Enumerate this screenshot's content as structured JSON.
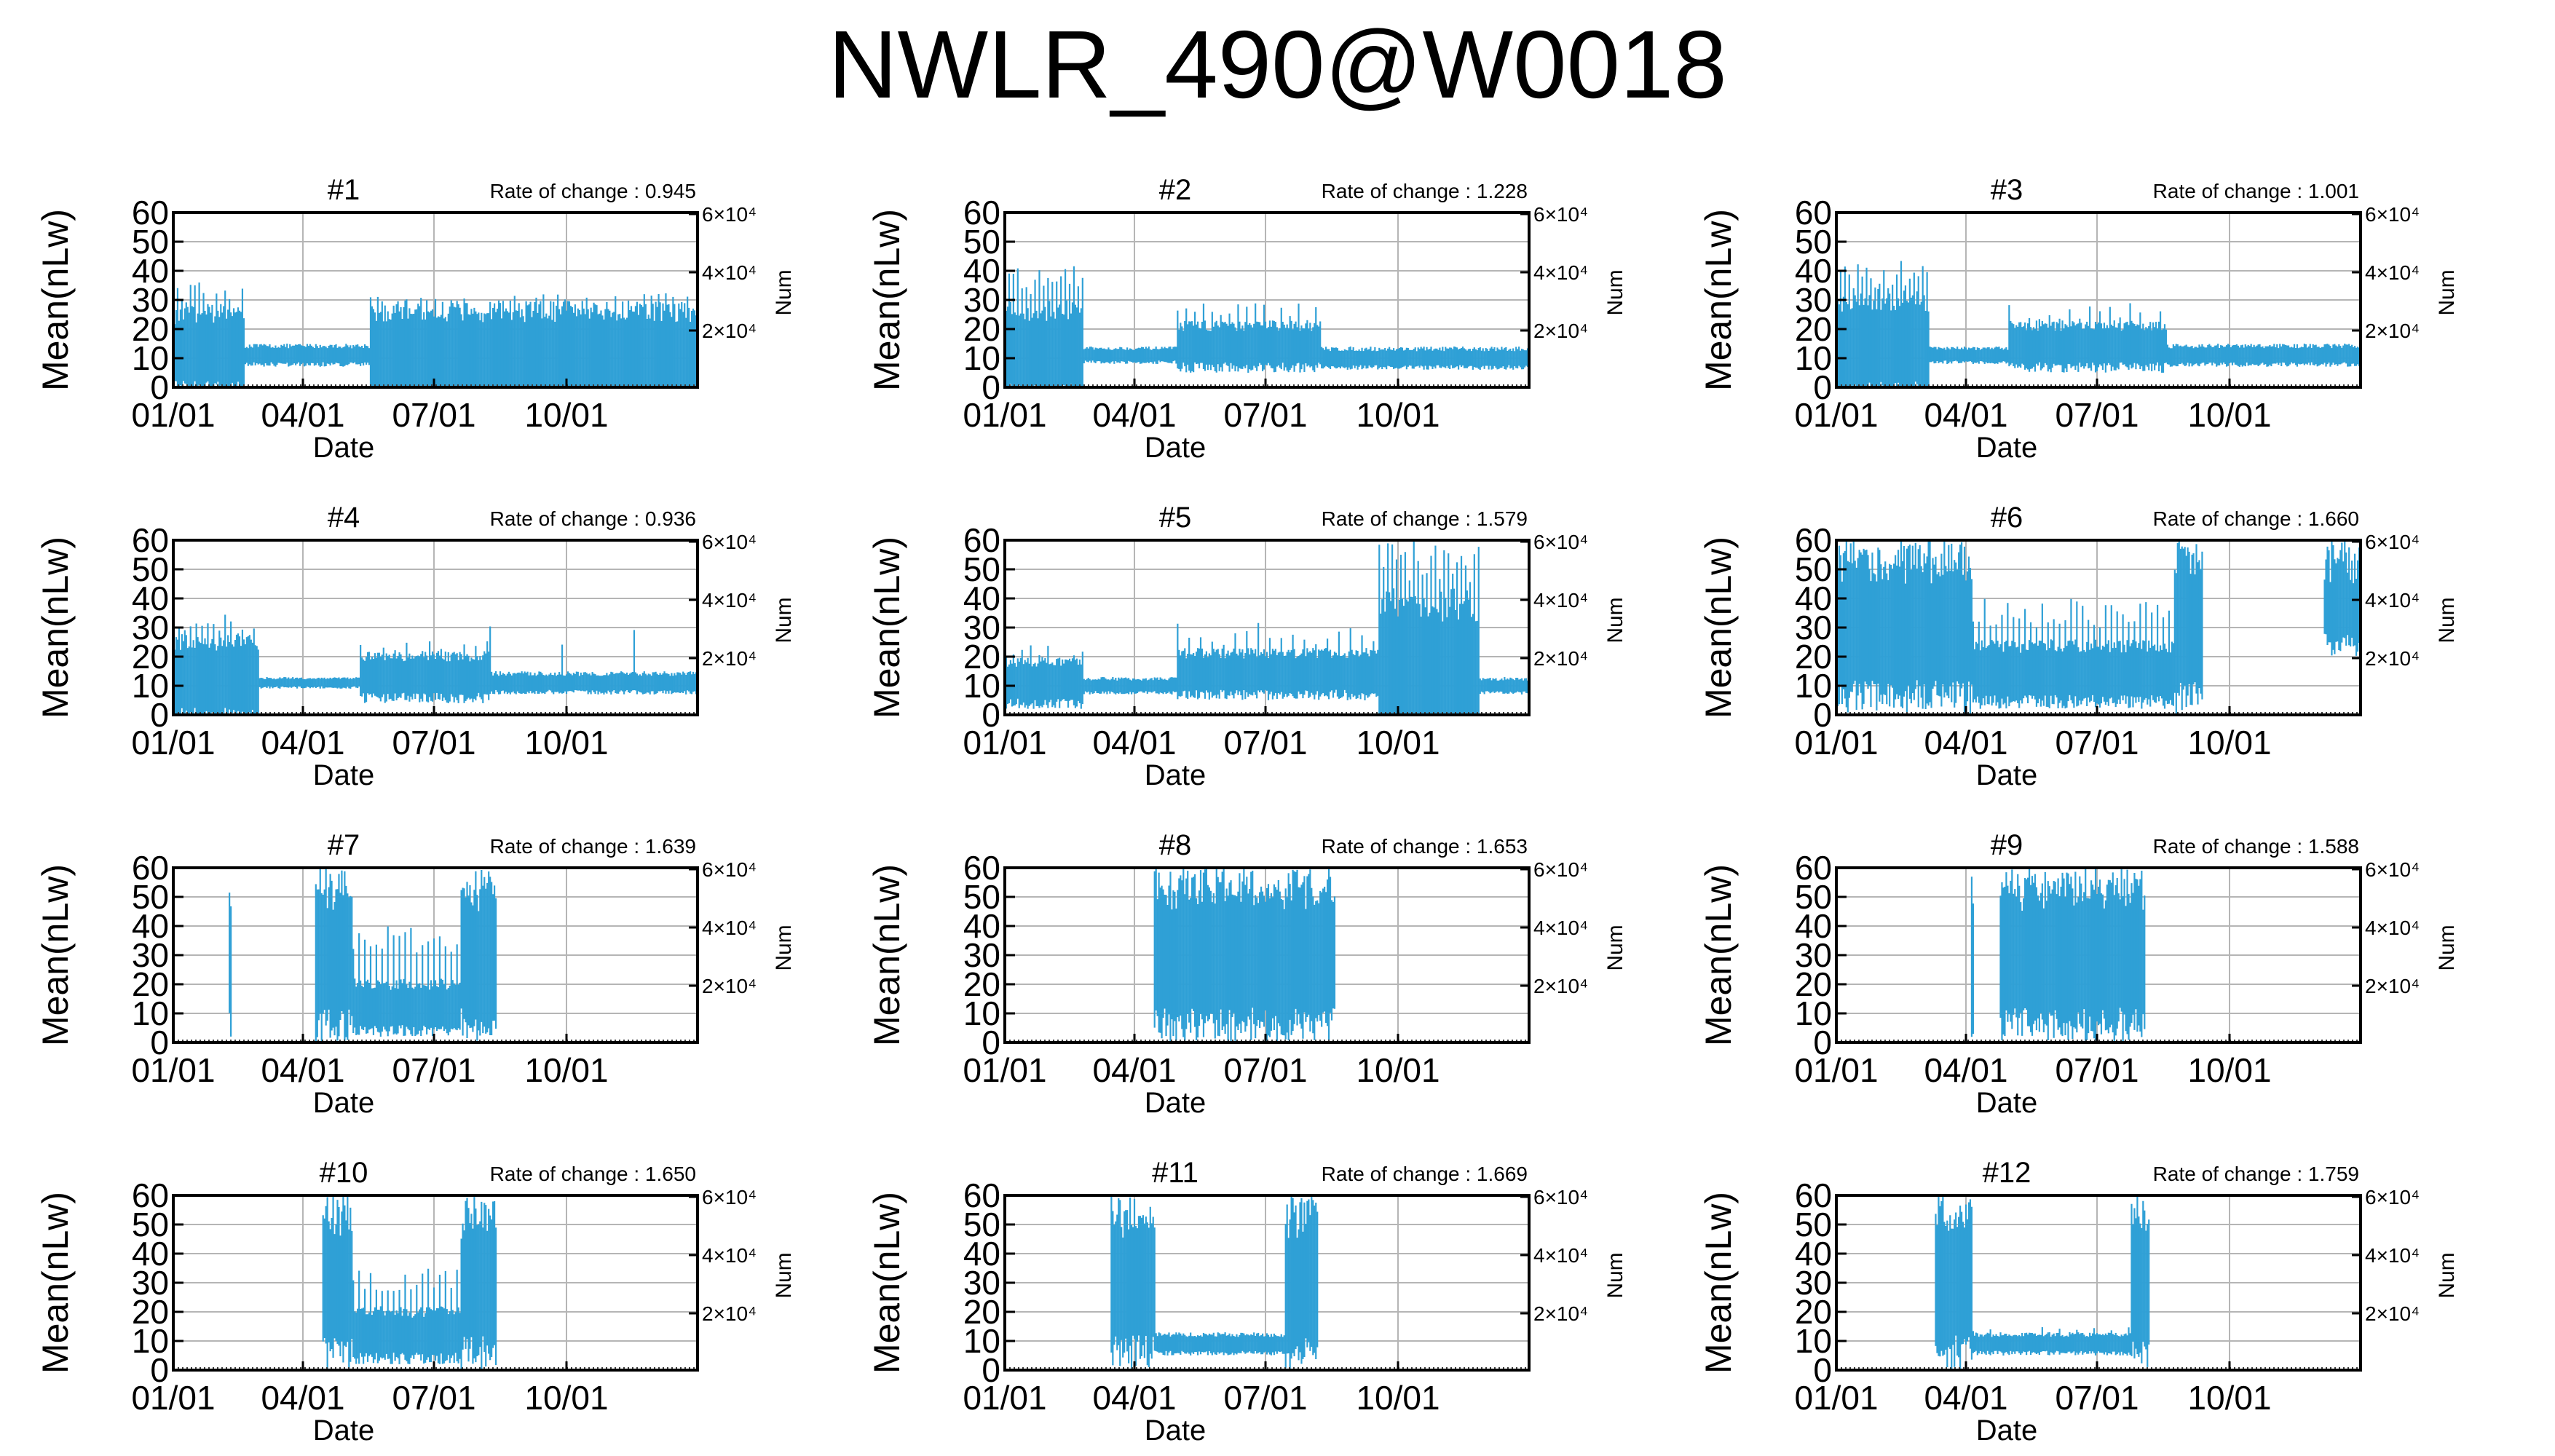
{
  "page_title": "NWLR_490@W0018",
  "colors": {
    "bars": "#2fa0d6",
    "grid": "#b5b5b5",
    "axes": "#000000"
  },
  "chart_data": [
    {
      "type": "bar-errorbar",
      "title": "#1",
      "rate_label": "Rate of change : 0.945",
      "ylabel": "Mean(nLw)",
      "y2label": "Num",
      "xlabel": "Date",
      "ylim": [
        0,
        60
      ],
      "yticks": [
        0,
        10,
        20,
        30,
        40,
        50,
        60
      ],
      "y2_ticks": [
        "2×10⁴",
        "4×10⁴",
        "6×10⁴"
      ],
      "xticks": [
        "01/01",
        "04/01",
        "07/01",
        "10/01"
      ],
      "grid": true,
      "segments": [
        {
          "start_doy": 1,
          "end_doy": 50,
          "mean": 12,
          "err": 16,
          "spike_every": 3,
          "spike_top": 36
        },
        {
          "start_doy": 51,
          "end_doy": 137,
          "mean": 11,
          "err": 4,
          "spike_every": 0,
          "spike_top": 0
        },
        {
          "start_doy": 138,
          "end_doy": 365,
          "mean": 11,
          "err": 19,
          "spike_every": 5,
          "spike_top": 33
        }
      ]
    },
    {
      "type": "bar-errorbar",
      "title": "#2",
      "rate_label": "Rate of change : 1.228",
      "ylabel": "Mean(nLw)",
      "y2label": "Num",
      "xlabel": "Date",
      "ylim": [
        0,
        60
      ],
      "yticks": [
        0,
        10,
        20,
        30,
        40,
        50,
        60
      ],
      "y2_ticks": [
        "2×10⁴",
        "4×10⁴",
        "6×10⁴"
      ],
      "xticks": [
        "01/01",
        "04/01",
        "07/01",
        "10/01"
      ],
      "grid": true,
      "segments": [
        {
          "start_doy": 1,
          "end_doy": 55,
          "mean": 12,
          "err": 18,
          "spike_every": 3,
          "spike_top": 42
        },
        {
          "start_doy": 56,
          "end_doy": 120,
          "mean": 11,
          "err": 3,
          "spike_every": 0,
          "spike_top": 0
        },
        {
          "start_doy": 121,
          "end_doy": 220,
          "mean": 14,
          "err": 9,
          "spike_every": 6,
          "spike_top": 30
        },
        {
          "start_doy": 221,
          "end_doy": 365,
          "mean": 10,
          "err": 4,
          "spike_every": 0,
          "spike_top": 0
        }
      ]
    },
    {
      "type": "bar-errorbar",
      "title": "#3",
      "rate_label": "Rate of change : 1.001",
      "ylabel": "Mean(nLw)",
      "y2label": "Num",
      "xlabel": "Date",
      "ylim": [
        0,
        60
      ],
      "yticks": [
        0,
        10,
        20,
        30,
        40,
        50,
        60
      ],
      "y2_ticks": [
        "2×10⁴",
        "4×10⁴",
        "6×10⁴"
      ],
      "xticks": [
        "01/01",
        "04/01",
        "07/01",
        "10/01"
      ],
      "grid": true,
      "segments": [
        {
          "start_doy": 1,
          "end_doy": 65,
          "mean": 14,
          "err": 20,
          "spike_every": 3,
          "spike_top": 44
        },
        {
          "start_doy": 66,
          "end_doy": 120,
          "mean": 11,
          "err": 3,
          "spike_every": 0,
          "spike_top": 0
        },
        {
          "start_doy": 121,
          "end_doy": 230,
          "mean": 14,
          "err": 9,
          "spike_every": 7,
          "spike_top": 29
        },
        {
          "start_doy": 231,
          "end_doy": 365,
          "mean": 11,
          "err": 4,
          "spike_every": 0,
          "spike_top": 0
        }
      ]
    },
    {
      "type": "bar-errorbar",
      "title": "#4",
      "rate_label": "Rate of change : 0.936",
      "ylabel": "Mean(nLw)",
      "y2label": "Num",
      "xlabel": "Date",
      "ylim": [
        0,
        60
      ],
      "yticks": [
        0,
        10,
        20,
        30,
        40,
        50,
        60
      ],
      "y2_ticks": [
        "2×10⁴",
        "4×10⁴",
        "6×10⁴"
      ],
      "xticks": [
        "01/01",
        "04/01",
        "07/01",
        "10/01"
      ],
      "grid": true,
      "segments": [
        {
          "start_doy": 1,
          "end_doy": 60,
          "mean": 12,
          "err": 16,
          "spike_every": 4,
          "spike_top": 36
        },
        {
          "start_doy": 61,
          "end_doy": 130,
          "mean": 11,
          "err": 2,
          "spike_every": 0,
          "spike_top": 0
        },
        {
          "start_doy": 131,
          "end_doy": 220,
          "mean": 13,
          "err": 9,
          "spike_every": 8,
          "spike_top": 26
        },
        {
          "start_doy": 221,
          "end_doy": 365,
          "mean": 11,
          "err": 4,
          "spike_every": 50,
          "spike_top": 32
        }
      ]
    },
    {
      "type": "bar-errorbar",
      "title": "#5",
      "rate_label": "Rate of change : 1.579",
      "ylabel": "Mean(nLw)",
      "y2label": "Num",
      "xlabel": "Date",
      "ylim": [
        0,
        60
      ],
      "yticks": [
        0,
        10,
        20,
        30,
        40,
        50,
        60
      ],
      "y2_ticks": [
        "2×10⁴",
        "4×10⁴",
        "6×10⁴"
      ],
      "xticks": [
        "01/01",
        "04/01",
        "07/01",
        "10/01"
      ],
      "grid": true,
      "segments": [
        {
          "start_doy": 1,
          "end_doy": 55,
          "mean": 11,
          "err": 9,
          "spike_every": 6,
          "spike_top": 25
        },
        {
          "start_doy": 56,
          "end_doy": 120,
          "mean": 10,
          "err": 3,
          "spike_every": 0,
          "spike_top": 0
        },
        {
          "start_doy": 121,
          "end_doy": 260,
          "mean": 14,
          "err": 9,
          "spike_every": 8,
          "spike_top": 32
        },
        {
          "start_doy": 261,
          "end_doy": 330,
          "mean": 14,
          "err": 30,
          "spike_every": 3,
          "spike_top": 60
        },
        {
          "start_doy": 331,
          "end_doy": 365,
          "mean": 10,
          "err": 3,
          "spike_every": 0,
          "spike_top": 0
        }
      ]
    },
    {
      "type": "bar-errorbar",
      "title": "#6",
      "rate_label": "Rate of change : 1.660",
      "ylabel": "Mean(nLw)",
      "y2label": "Num",
      "xlabel": "Date",
      "ylim": [
        0,
        60
      ],
      "yticks": [
        0,
        10,
        20,
        30,
        40,
        50,
        60
      ],
      "y2_ticks": [
        "2×10⁴",
        "4×10⁴",
        "6×10⁴"
      ],
      "xticks": [
        "01/01",
        "04/01",
        "07/01",
        "10/01"
      ],
      "grid": true,
      "segments": [
        {
          "start_doy": 1,
          "end_doy": 95,
          "mean": 30,
          "err": 30,
          "spike_every": 2,
          "spike_top": 60
        },
        {
          "start_doy": 96,
          "end_doy": 235,
          "mean": 14,
          "err": 12,
          "spike_every": 4,
          "spike_top": 40
        },
        {
          "start_doy": 236,
          "end_doy": 255,
          "mean": 30,
          "err": 30,
          "spike_every": 6,
          "spike_top": 60
        },
        {
          "start_doy": 340,
          "end_doy": 365,
          "mean": 40,
          "err": 20,
          "spike_every": 2,
          "spike_top": 60
        }
      ]
    },
    {
      "type": "bar-errorbar",
      "title": "#7",
      "rate_label": "Rate of change : 1.639",
      "ylabel": "Mean(nLw)",
      "y2label": "Num",
      "xlabel": "Date",
      "ylim": [
        0,
        60
      ],
      "yticks": [
        0,
        10,
        20,
        30,
        40,
        50,
        60
      ],
      "y2_ticks": [
        "2×10⁴",
        "4×10⁴",
        "6×10⁴"
      ],
      "xticks": [
        "01/01",
        "04/01",
        "07/01",
        "10/01"
      ],
      "grid": true,
      "segments": [
        {
          "start_doy": 40,
          "end_doy": 41,
          "mean": 30,
          "err": 30,
          "spike_every": 1,
          "spike_top": 60
        },
        {
          "start_doy": 100,
          "end_doy": 125,
          "mean": 30,
          "err": 30,
          "spike_every": 2,
          "spike_top": 60
        },
        {
          "start_doy": 126,
          "end_doy": 200,
          "mean": 12,
          "err": 10,
          "spike_every": 4,
          "spike_top": 40
        },
        {
          "start_doy": 201,
          "end_doy": 225,
          "mean": 30,
          "err": 30,
          "spike_every": 2,
          "spike_top": 60
        }
      ]
    },
    {
      "type": "bar-errorbar",
      "title": "#8",
      "rate_label": "Rate of change : 1.653",
      "ylabel": "Mean(nLw)",
      "y2label": "Num",
      "xlabel": "Date",
      "ylim": [
        0,
        60
      ],
      "yticks": [
        0,
        10,
        20,
        30,
        40,
        50,
        60
      ],
      "y2_ticks": [
        "2×10⁴",
        "4×10⁴",
        "6×10⁴"
      ],
      "xticks": [
        "01/01",
        "04/01",
        "07/01",
        "10/01"
      ],
      "grid": true,
      "segments": [
        {
          "start_doy": 105,
          "end_doy": 230,
          "mean": 30,
          "err": 30,
          "spike_every": 3,
          "spike_top": 60
        }
      ]
    },
    {
      "type": "bar-errorbar",
      "title": "#9",
      "rate_label": "Rate of change : 1.588",
      "ylabel": "Mean(nLw)",
      "y2label": "Num",
      "xlabel": "Date",
      "ylim": [
        0,
        60
      ],
      "yticks": [
        0,
        10,
        20,
        30,
        40,
        50,
        60
      ],
      "y2_ticks": [
        "2×10⁴",
        "4×10⁴",
        "6×10⁴"
      ],
      "xticks": [
        "01/01",
        "04/01",
        "07/01",
        "10/01"
      ],
      "grid": true,
      "segments": [
        {
          "start_doy": 95,
          "end_doy": 96,
          "mean": 30,
          "err": 30,
          "spike_every": 1,
          "spike_top": 60
        },
        {
          "start_doy": 115,
          "end_doy": 215,
          "mean": 30,
          "err": 30,
          "spike_every": 3,
          "spike_top": 60
        }
      ]
    },
    {
      "type": "bar-errorbar",
      "title": "#10",
      "rate_label": "Rate of change : 1.650",
      "ylabel": "Mean(nLw)",
      "y2label": "Num",
      "xlabel": "Date",
      "ylim": [
        0,
        60
      ],
      "yticks": [
        0,
        10,
        20,
        30,
        40,
        50,
        60
      ],
      "y2_ticks": [
        "2×10⁴",
        "4×10⁴",
        "6×10⁴"
      ],
      "xticks": [
        "01/01",
        "04/01",
        "07/01",
        "10/01"
      ],
      "grid": true,
      "segments": [
        {
          "start_doy": 105,
          "end_doy": 125,
          "mean": 30,
          "err": 30,
          "spike_every": 2,
          "spike_top": 60
        },
        {
          "start_doy": 126,
          "end_doy": 200,
          "mean": 12,
          "err": 10,
          "spike_every": 4,
          "spike_top": 35
        },
        {
          "start_doy": 201,
          "end_doy": 225,
          "mean": 30,
          "err": 30,
          "spike_every": 2,
          "spike_top": 60
        }
      ]
    },
    {
      "type": "bar-errorbar",
      "title": "#11",
      "rate_label": "Rate of change : 1.669",
      "ylabel": "Mean(nLw)",
      "y2label": "Num",
      "xlabel": "Date",
      "ylim": [
        0,
        60
      ],
      "yticks": [
        0,
        10,
        20,
        30,
        40,
        50,
        60
      ],
      "y2_ticks": [
        "2×10⁴",
        "4×10⁴",
        "6×10⁴"
      ],
      "xticks": [
        "01/01",
        "04/01",
        "07/01",
        "10/01"
      ],
      "grid": true,
      "segments": [
        {
          "start_doy": 75,
          "end_doy": 105,
          "mean": 30,
          "err": 30,
          "spike_every": 2,
          "spike_top": 60
        },
        {
          "start_doy": 106,
          "end_doy": 195,
          "mean": 9,
          "err": 4,
          "spike_every": 0,
          "spike_top": 0
        },
        {
          "start_doy": 196,
          "end_doy": 218,
          "mean": 30,
          "err": 30,
          "spike_every": 2,
          "spike_top": 60
        }
      ]
    },
    {
      "type": "bar-errorbar",
      "title": "#12",
      "rate_label": "Rate of change : 1.759",
      "ylabel": "Mean(nLw)",
      "y2label": "Num",
      "xlabel": "Date",
      "ylim": [
        0,
        60
      ],
      "yticks": [
        0,
        10,
        20,
        30,
        40,
        50,
        60
      ],
      "y2_ticks": [
        "2×10⁴",
        "4×10⁴",
        "6×10⁴"
      ],
      "xticks": [
        "01/01",
        "04/01",
        "07/01",
        "10/01"
      ],
      "grid": true,
      "segments": [
        {
          "start_doy": 70,
          "end_doy": 95,
          "mean": 30,
          "err": 30,
          "spike_every": 3,
          "spike_top": 60
        },
        {
          "start_doy": 96,
          "end_doy": 205,
          "mean": 9,
          "err": 4,
          "spike_every": 12,
          "spike_top": 15
        },
        {
          "start_doy": 206,
          "end_doy": 218,
          "mean": 30,
          "err": 30,
          "spike_every": 2,
          "spike_top": 60
        }
      ]
    }
  ]
}
